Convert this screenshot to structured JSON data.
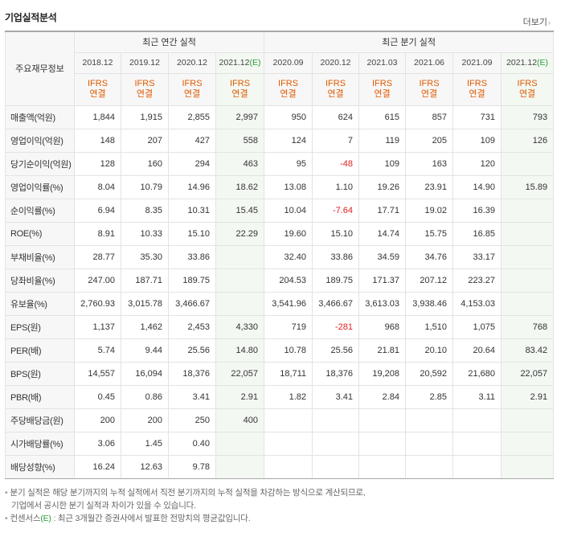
{
  "title": "기업실적분석",
  "more_label": "더보기",
  "header": {
    "row_label": "주요재무정보",
    "annual_group": "최근 연간 실적",
    "quarter_group": "최근 분기 실적",
    "est_marker": "(E)",
    "ifrs_line1": "IFRS",
    "ifrs_line2": "연결",
    "annual_periods": [
      "2018.12",
      "2019.12",
      "2020.12",
      "2021.12"
    ],
    "quarter_periods": [
      "2020.09",
      "2020.12",
      "2021.03",
      "2021.06",
      "2021.09",
      "2021.12"
    ]
  },
  "rows": [
    {
      "label": "매출액(억원)",
      "annual": [
        "1,844",
        "1,915",
        "2,855",
        "2,997"
      ],
      "quarter": [
        "950",
        "624",
        "615",
        "857",
        "731",
        "793"
      ]
    },
    {
      "label": "영업이익(억원)",
      "annual": [
        "148",
        "207",
        "427",
        "558"
      ],
      "quarter": [
        "124",
        "7",
        "119",
        "205",
        "109",
        "126"
      ]
    },
    {
      "label": "당기순이익(억원)",
      "annual": [
        "128",
        "160",
        "294",
        "463"
      ],
      "quarter": [
        "95",
        "-48",
        "109",
        "163",
        "120",
        ""
      ]
    },
    {
      "label": "영업이익률(%)",
      "annual": [
        "8.04",
        "10.79",
        "14.96",
        "18.62"
      ],
      "quarter": [
        "13.08",
        "1.10",
        "19.26",
        "23.91",
        "14.90",
        "15.89"
      ]
    },
    {
      "label": "순이익률(%)",
      "annual": [
        "6.94",
        "8.35",
        "10.31",
        "15.45"
      ],
      "quarter": [
        "10.04",
        "-7.64",
        "17.71",
        "19.02",
        "16.39",
        ""
      ]
    },
    {
      "label": "ROE(%)",
      "annual": [
        "8.91",
        "10.33",
        "15.10",
        "22.29"
      ],
      "quarter": [
        "19.60",
        "15.10",
        "14.74",
        "15.75",
        "16.85",
        ""
      ]
    },
    {
      "label": "부채비율(%)",
      "annual": [
        "28.77",
        "35.30",
        "33.86",
        ""
      ],
      "quarter": [
        "32.40",
        "33.86",
        "34.59",
        "34.76",
        "33.17",
        ""
      ]
    },
    {
      "label": "당좌비율(%)",
      "annual": [
        "247.00",
        "187.71",
        "189.75",
        ""
      ],
      "quarter": [
        "204.53",
        "189.75",
        "171.37",
        "207.12",
        "223.27",
        ""
      ]
    },
    {
      "label": "유보율(%)",
      "annual": [
        "2,760.93",
        "3,015.78",
        "3,466.67",
        ""
      ],
      "quarter": [
        "3,541.96",
        "3,466.67",
        "3,613.03",
        "3,938.46",
        "4,153.03",
        ""
      ]
    },
    {
      "label": "EPS(원)",
      "annual": [
        "1,137",
        "1,462",
        "2,453",
        "4,330"
      ],
      "quarter": [
        "719",
        "-281",
        "968",
        "1,510",
        "1,075",
        "768"
      ]
    },
    {
      "label": "PER(배)",
      "annual": [
        "5.74",
        "9.44",
        "25.56",
        "14.80"
      ],
      "quarter": [
        "10.78",
        "25.56",
        "21.81",
        "20.10",
        "20.64",
        "83.42"
      ]
    },
    {
      "label": "BPS(원)",
      "annual": [
        "14,557",
        "16,094",
        "18,376",
        "22,057"
      ],
      "quarter": [
        "18,711",
        "18,376",
        "19,208",
        "20,592",
        "21,680",
        "22,057"
      ]
    },
    {
      "label": "PBR(배)",
      "annual": [
        "0.45",
        "0.86",
        "3.41",
        "2.91"
      ],
      "quarter": [
        "1.82",
        "3.41",
        "2.84",
        "2.85",
        "3.11",
        "2.91"
      ]
    },
    {
      "label": "주당배당금(원)",
      "annual": [
        "200",
        "200",
        "250",
        "400"
      ],
      "quarter": [
        "",
        "",
        "",
        "",
        "",
        ""
      ]
    },
    {
      "label": "시가배당률(%)",
      "annual": [
        "3.06",
        "1.45",
        "0.40",
        ""
      ],
      "quarter": [
        "",
        "",
        "",
        "",
        "",
        ""
      ]
    },
    {
      "label": "배당성향(%)",
      "annual": [
        "16.24",
        "12.63",
        "9.78",
        ""
      ],
      "quarter": [
        "",
        "",
        "",
        "",
        "",
        ""
      ]
    }
  ],
  "notes": {
    "line1": "분기 실적은 해당 분기까지의 누적 실적에서 직전 분기까지의 누적 실적을 차감하는 방식으로 계산되므로,",
    "line2": "기업에서 공시한 분기 실적과 차이가 있을 수 있습니다.",
    "line3_prefix": "컨센서스",
    "line3_marker": "(E)",
    "line3_suffix": ": 최근 3개월간 증권사에서 발표한 전망치의 평균값입니다."
  },
  "colors": {
    "ifrs": "#e05a00",
    "estimate": "#2e9b3b",
    "negative": "#e02020",
    "estimate_bg": "#f3f8f2"
  }
}
